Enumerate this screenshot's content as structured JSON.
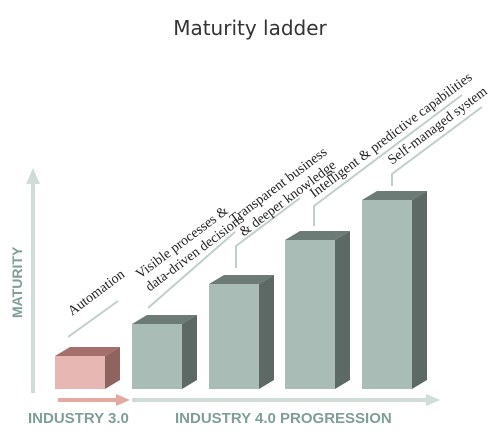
{
  "title": "Maturity ladder",
  "y_axis_label": "MATURITY",
  "x_axis": {
    "industry_3": "INDUSTRY 3.0",
    "industry_4": "INDUSTRY 4.0 PROGRESSION"
  },
  "steps": [
    {
      "lines": [
        "Automation"
      ]
    },
    {
      "lines": [
        "Visible processes &",
        "data-driven decisions"
      ]
    },
    {
      "lines": [
        "Transparent business",
        "& deeper knowledge"
      ]
    },
    {
      "lines": [
        "Intelligent & predictive capabilities"
      ]
    },
    {
      "lines": [
        "Self-managed system"
      ]
    }
  ],
  "colors": {
    "industry_3_step": "#e7b8b3",
    "industry_4_step": "#a9bdb6",
    "axis": "#cfdcd8",
    "axis_label": "#7f9e98",
    "industry_3_arrow": "#e5a9a2"
  }
}
